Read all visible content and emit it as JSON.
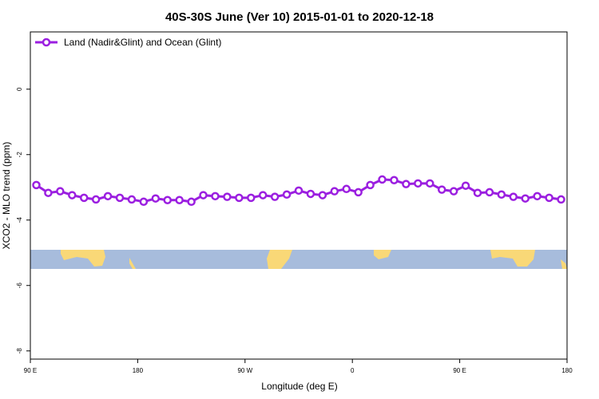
{
  "chart_data": {
    "type": "line",
    "title": "40S-30S June (Ver 10)   2015-01-01 to 2020-12-18",
    "x_label": "Longitude (deg E)",
    "y_label": "XCO2 - MLO trend (ppm)",
    "x": [
      95,
      105,
      115,
      125,
      135,
      145,
      155,
      165,
      175,
      185,
      195,
      205,
      215,
      225,
      235,
      245,
      255,
      265,
      275,
      285,
      295,
      305,
      315,
      325,
      335,
      345,
      355,
      365,
      375,
      385,
      395,
      405,
      415,
      425,
      435,
      445,
      455,
      465,
      475,
      485,
      495,
      505,
      515,
      525,
      535
    ],
    "series": [
      {
        "name": "Land (Nadir&Glint) and Ocean (Glint)",
        "color": "#9b1fe0",
        "values": [
          -2.93,
          -3.17,
          -3.12,
          -3.24,
          -3.32,
          -3.37,
          -3.27,
          -3.32,
          -3.37,
          -3.44,
          -3.34,
          -3.39,
          -3.39,
          -3.44,
          -3.24,
          -3.27,
          -3.29,
          -3.32,
          -3.32,
          -3.24,
          -3.29,
          -3.22,
          -3.1,
          -3.2,
          -3.24,
          -3.12,
          -3.05,
          -3.15,
          -2.93,
          -2.76,
          -2.78,
          -2.9,
          -2.88,
          -2.88,
          -3.07,
          -3.12,
          -2.95,
          -3.17,
          -3.15,
          -3.22,
          -3.29,
          -3.34,
          -3.27,
          -3.32,
          -3.37
        ]
      }
    ],
    "xlim": [
      90,
      540
    ],
    "ylim": [
      1.75,
      -8.25
    ],
    "xticks": [
      {
        "value": 90,
        "label": "90 E"
      },
      {
        "value": 180,
        "label": "180"
      },
      {
        "value": 270,
        "label": "90 W"
      },
      {
        "value": 360,
        "label": "0"
      },
      {
        "value": 450,
        "label": "90 E"
      },
      {
        "value": 540,
        "label": "180"
      }
    ],
    "yticks": [
      0,
      -2,
      -4,
      -6,
      -8
    ],
    "legend": "top-left"
  }
}
